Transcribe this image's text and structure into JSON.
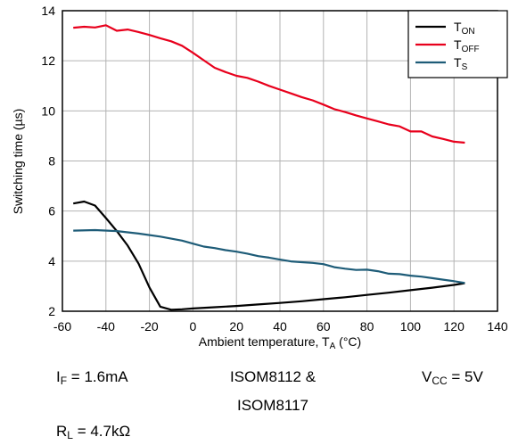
{
  "chart_data": {
    "type": "line",
    "xlabel_main": "Ambient temperature, T",
    "xlabel_sub": "A",
    "xlabel_unit": " (°C)",
    "ylabel": "Switching time (µs)",
    "xlim": [
      -60,
      140
    ],
    "ylim": [
      2,
      14
    ],
    "xticks": [
      -60,
      -40,
      -20,
      0,
      20,
      40,
      60,
      80,
      100,
      120,
      140
    ],
    "yticks": [
      2,
      4,
      6,
      8,
      10,
      12,
      14
    ],
    "grid": true,
    "legend_position": "top-right",
    "series": [
      {
        "name_main": "T",
        "name_sub": "ON",
        "color": "#000000",
        "x": [
          -55,
          -50,
          -45,
          -40,
          -35,
          -30,
          -25,
          -20,
          -15,
          -10,
          -5,
          0,
          10,
          20,
          30,
          40,
          50,
          60,
          70,
          80,
          90,
          100,
          110,
          120,
          125
        ],
        "y": [
          6.3,
          6.38,
          6.22,
          5.72,
          5.2,
          4.62,
          3.9,
          2.95,
          2.18,
          2.06,
          2.08,
          2.11,
          2.16,
          2.21,
          2.27,
          2.33,
          2.4,
          2.48,
          2.56,
          2.65,
          2.74,
          2.84,
          2.94,
          3.05,
          3.12
        ]
      },
      {
        "name_main": "T",
        "name_sub": "OFF",
        "color": "#e8001c",
        "x": [
          -55,
          -50,
          -45,
          -40,
          -35,
          -30,
          -25,
          -20,
          -15,
          -10,
          -5,
          0,
          5,
          10,
          15,
          20,
          25,
          30,
          35,
          40,
          45,
          50,
          55,
          60,
          65,
          70,
          75,
          80,
          85,
          90,
          95,
          100,
          105,
          110,
          115,
          120,
          125
        ],
        "y": [
          13.32,
          13.36,
          13.33,
          13.42,
          13.2,
          13.25,
          13.15,
          13.03,
          12.9,
          12.78,
          12.6,
          12.32,
          12.02,
          11.72,
          11.55,
          11.4,
          11.32,
          11.17,
          11.0,
          10.85,
          10.7,
          10.55,
          10.42,
          10.25,
          10.07,
          9.95,
          9.82,
          9.7,
          9.58,
          9.46,
          9.38,
          9.18,
          9.18,
          8.98,
          8.88,
          8.77,
          8.73
        ]
      },
      {
        "name_main": "T",
        "name_sub": "S",
        "color": "#1e5c78",
        "x": [
          -55,
          -45,
          -35,
          -25,
          -15,
          -5,
          0,
          5,
          10,
          15,
          20,
          25,
          30,
          35,
          40,
          45,
          50,
          55,
          60,
          65,
          70,
          75,
          80,
          85,
          90,
          95,
          100,
          105,
          110,
          115,
          120,
          125
        ],
        "y": [
          5.22,
          5.24,
          5.2,
          5.1,
          4.98,
          4.82,
          4.7,
          4.58,
          4.52,
          4.44,
          4.38,
          4.3,
          4.2,
          4.14,
          4.06,
          3.99,
          3.96,
          3.93,
          3.88,
          3.76,
          3.7,
          3.65,
          3.66,
          3.6,
          3.5,
          3.48,
          3.42,
          3.38,
          3.32,
          3.26,
          3.2,
          3.13
        ]
      }
    ]
  },
  "conditions": {
    "if_main": "I",
    "if_sub": "F",
    "if_val": " = 1.6mA",
    "device_line1": "ISOM8112 &",
    "device_line2": "ISOM8117",
    "vcc_main": "V",
    "vcc_sub": "CC",
    "vcc_val": " = 5V",
    "rl_main": "R",
    "rl_sub": "L",
    "rl_val": " = 4.7kΩ"
  }
}
